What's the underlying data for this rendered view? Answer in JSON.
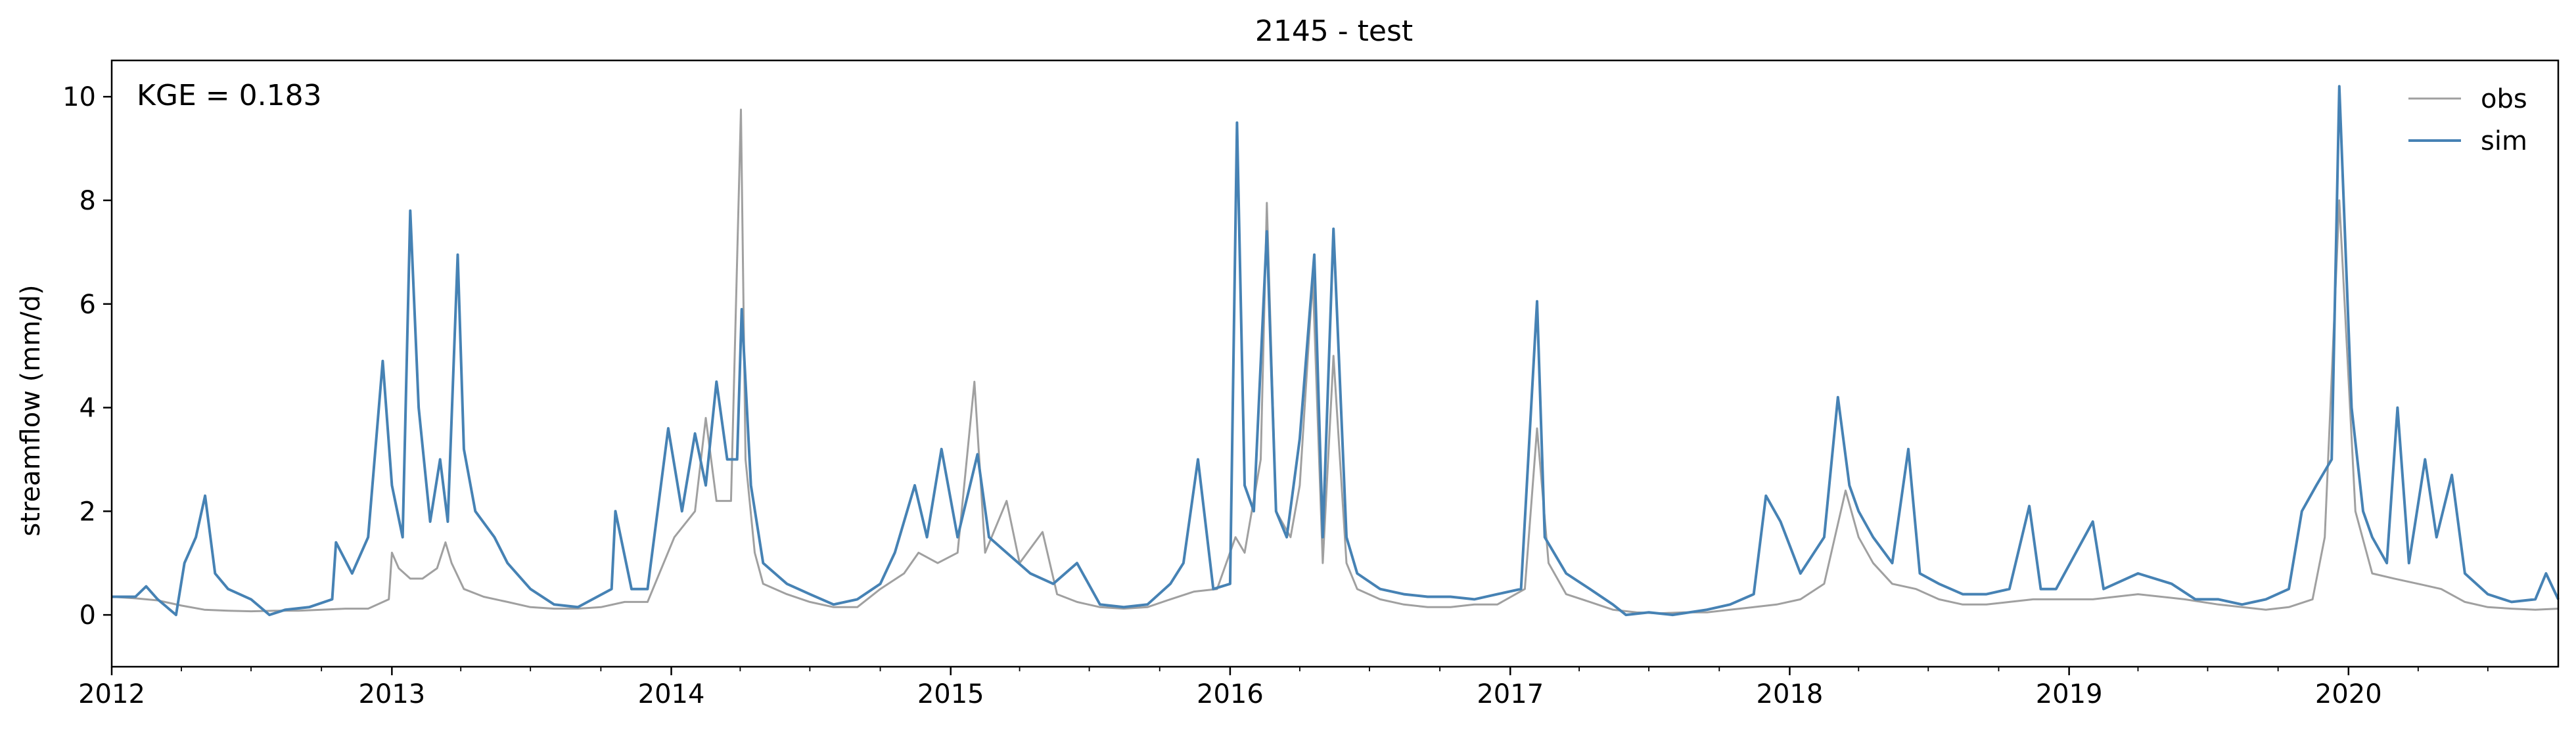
{
  "chart_data": {
    "type": "line",
    "title": "2145 - test",
    "xlabel": "",
    "ylabel": "streamflow (mm/d)",
    "x_range": [
      "2012-01-01",
      "2020-10-01"
    ],
    "ylim": [
      -1,
      10.7
    ],
    "grid": false,
    "legend_position": "top-right",
    "x_ticks": [
      "2012",
      "2013",
      "2014",
      "2015",
      "2016",
      "2017",
      "2018",
      "2019",
      "2020"
    ],
    "x_tick_dates": [
      "2012-01-01",
      "2013-01-01",
      "2014-01-01",
      "2015-01-01",
      "2016-01-01",
      "2017-01-01",
      "2018-01-01",
      "2019-01-01",
      "2020-01-01"
    ],
    "y_ticks": [
      "0",
      "2",
      "4",
      "6",
      "8",
      "10"
    ],
    "y_tick_values": [
      0,
      2,
      4,
      6,
      8,
      10
    ],
    "annotation": "KGE = 0.183",
    "series": [
      {
        "name": "obs",
        "color": "#a0a0a0",
        "points": [
          [
            "2012-01-01",
            0.35
          ],
          [
            "2012-02-01",
            0.32
          ],
          [
            "2012-03-01",
            0.28
          ],
          [
            "2012-04-01",
            0.18
          ],
          [
            "2012-05-01",
            0.1
          ],
          [
            "2012-06-01",
            0.08
          ],
          [
            "2012-07-01",
            0.07
          ],
          [
            "2012-08-01",
            0.08
          ],
          [
            "2012-09-01",
            0.08
          ],
          [
            "2012-10-01",
            0.1
          ],
          [
            "2012-11-01",
            0.12
          ],
          [
            "2012-12-01",
            0.12
          ],
          [
            "2012-12-28",
            0.3
          ],
          [
            "2013-01-01",
            1.2
          ],
          [
            "2013-01-10",
            0.9
          ],
          [
            "2013-01-25",
            0.7
          ],
          [
            "2013-02-10",
            0.7
          ],
          [
            "2013-03-01",
            0.9
          ],
          [
            "2013-03-12",
            1.4
          ],
          [
            "2013-03-20",
            1.0
          ],
          [
            "2013-04-05",
            0.5
          ],
          [
            "2013-05-01",
            0.35
          ],
          [
            "2013-06-01",
            0.25
          ],
          [
            "2013-07-01",
            0.15
          ],
          [
            "2013-08-01",
            0.12
          ],
          [
            "2013-09-01",
            0.12
          ],
          [
            "2013-10-01",
            0.15
          ],
          [
            "2013-11-01",
            0.25
          ],
          [
            "2013-12-01",
            0.25
          ],
          [
            "2014-01-05",
            1.5
          ],
          [
            "2014-02-01",
            2.0
          ],
          [
            "2014-02-15",
            3.8
          ],
          [
            "2014-03-01",
            2.2
          ],
          [
            "2014-03-20",
            2.2
          ],
          [
            "2014-04-02",
            9.75
          ],
          [
            "2014-04-08",
            3.0
          ],
          [
            "2014-04-20",
            1.2
          ],
          [
            "2014-05-01",
            0.6
          ],
          [
            "2014-06-01",
            0.4
          ],
          [
            "2014-07-01",
            0.25
          ],
          [
            "2014-08-01",
            0.15
          ],
          [
            "2014-09-01",
            0.15
          ],
          [
            "2014-10-01",
            0.5
          ],
          [
            "2014-11-01",
            0.8
          ],
          [
            "2014-11-20",
            1.2
          ],
          [
            "2014-12-15",
            1.0
          ],
          [
            "2015-01-10",
            1.2
          ],
          [
            "2015-02-01",
            4.5
          ],
          [
            "2015-02-15",
            1.2
          ],
          [
            "2015-03-15",
            2.2
          ],
          [
            "2015-04-01",
            1.0
          ],
          [
            "2015-05-01",
            1.6
          ],
          [
            "2015-05-20",
            0.4
          ],
          [
            "2015-06-15",
            0.25
          ],
          [
            "2015-07-15",
            0.15
          ],
          [
            "2015-08-15",
            0.12
          ],
          [
            "2015-09-15",
            0.15
          ],
          [
            "2015-10-15",
            0.3
          ],
          [
            "2015-11-15",
            0.45
          ],
          [
            "2015-12-15",
            0.5
          ],
          [
            "2016-01-08",
            1.5
          ],
          [
            "2016-01-20",
            1.2
          ],
          [
            "2016-02-10",
            3.0
          ],
          [
            "2016-02-18",
            7.95
          ],
          [
            "2016-03-01",
            2.0
          ],
          [
            "2016-03-20",
            1.5
          ],
          [
            "2016-04-01",
            2.5
          ],
          [
            "2016-04-18",
            6.5
          ],
          [
            "2016-05-01",
            1.0
          ],
          [
            "2016-05-15",
            5.0
          ],
          [
            "2016-06-01",
            1.0
          ],
          [
            "2016-06-15",
            0.5
          ],
          [
            "2016-07-15",
            0.3
          ],
          [
            "2016-08-15",
            0.2
          ],
          [
            "2016-09-15",
            0.15
          ],
          [
            "2016-10-15",
            0.15
          ],
          [
            "2016-11-15",
            0.2
          ],
          [
            "2016-12-15",
            0.2
          ],
          [
            "2017-01-20",
            0.5
          ],
          [
            "2017-02-05",
            3.6
          ],
          [
            "2017-02-20",
            1.0
          ],
          [
            "2017-03-15",
            0.4
          ],
          [
            "2017-04-15",
            0.25
          ],
          [
            "2017-05-15",
            0.1
          ],
          [
            "2017-06-15",
            0.05
          ],
          [
            "2017-07-15",
            0.03
          ],
          [
            "2017-08-15",
            0.05
          ],
          [
            "2017-09-15",
            0.05
          ],
          [
            "2017-10-15",
            0.1
          ],
          [
            "2017-11-15",
            0.15
          ],
          [
            "2017-12-15",
            0.2
          ],
          [
            "2018-01-15",
            0.3
          ],
          [
            "2018-02-15",
            0.6
          ],
          [
            "2018-03-15",
            2.4
          ],
          [
            "2018-04-01",
            1.5
          ],
          [
            "2018-04-20",
            1.0
          ],
          [
            "2018-05-15",
            0.6
          ],
          [
            "2018-06-15",
            0.5
          ],
          [
            "2018-07-15",
            0.3
          ],
          [
            "2018-08-15",
            0.2
          ],
          [
            "2018-09-15",
            0.2
          ],
          [
            "2018-10-15",
            0.25
          ],
          [
            "2018-11-15",
            0.3
          ],
          [
            "2018-12-15",
            0.3
          ],
          [
            "2019-02-01",
            0.3
          ],
          [
            "2019-04-01",
            0.4
          ],
          [
            "2019-06-01",
            0.3
          ],
          [
            "2019-07-15",
            0.2
          ],
          [
            "2019-09-15",
            0.1
          ],
          [
            "2019-10-15",
            0.15
          ],
          [
            "2019-11-15",
            0.3
          ],
          [
            "2019-12-01",
            1.5
          ],
          [
            "2019-12-20",
            8.0
          ],
          [
            "2020-01-10",
            2.0
          ],
          [
            "2020-02-01",
            0.8
          ],
          [
            "2020-03-01",
            0.7
          ],
          [
            "2020-04-01",
            0.6
          ],
          [
            "2020-05-01",
            0.5
          ],
          [
            "2020-06-01",
            0.25
          ],
          [
            "2020-07-01",
            0.15
          ],
          [
            "2020-08-01",
            0.12
          ],
          [
            "2020-09-01",
            0.1
          ],
          [
            "2020-10-01",
            0.12
          ]
        ]
      },
      {
        "name": "sim",
        "color": "#4682b4",
        "points": [
          [
            "2012-01-01",
            0.35
          ],
          [
            "2012-02-01",
            0.35
          ],
          [
            "2012-02-15",
            0.55
          ],
          [
            "2012-03-01",
            0.3
          ],
          [
            "2012-03-25",
            0.0
          ],
          [
            "2012-04-05",
            1.0
          ],
          [
            "2012-04-20",
            1.5
          ],
          [
            "2012-05-02",
            2.3
          ],
          [
            "2012-05-15",
            0.8
          ],
          [
            "2012-06-01",
            0.5
          ],
          [
            "2012-07-01",
            0.3
          ],
          [
            "2012-07-25",
            0.0
          ],
          [
            "2012-08-15",
            0.1
          ],
          [
            "2012-09-15",
            0.15
          ],
          [
            "2012-10-15",
            0.3
          ],
          [
            "2012-10-20",
            1.4
          ],
          [
            "2012-11-10",
            0.8
          ],
          [
            "2012-12-01",
            1.5
          ],
          [
            "2012-12-20",
            4.9
          ],
          [
            "2013-01-01",
            2.5
          ],
          [
            "2013-01-15",
            1.5
          ],
          [
            "2013-01-25",
            7.8
          ],
          [
            "2013-02-05",
            4.0
          ],
          [
            "2013-02-20",
            1.8
          ],
          [
            "2013-03-05",
            3.0
          ],
          [
            "2013-03-15",
            1.8
          ],
          [
            "2013-03-28",
            6.95
          ],
          [
            "2013-04-05",
            3.2
          ],
          [
            "2013-04-20",
            2.0
          ],
          [
            "2013-05-15",
            1.5
          ],
          [
            "2013-06-01",
            1.0
          ],
          [
            "2013-07-01",
            0.5
          ],
          [
            "2013-08-01",
            0.2
          ],
          [
            "2013-09-01",
            0.15
          ],
          [
            "2013-10-15",
            0.5
          ],
          [
            "2013-10-20",
            2.0
          ],
          [
            "2013-11-10",
            0.5
          ],
          [
            "2013-12-01",
            0.5
          ],
          [
            "2013-12-28",
            3.6
          ],
          [
            "2014-01-15",
            2.0
          ],
          [
            "2014-02-01",
            3.5
          ],
          [
            "2014-02-15",
            2.5
          ],
          [
            "2014-03-01",
            4.5
          ],
          [
            "2014-03-15",
            3.0
          ],
          [
            "2014-03-28",
            3.0
          ],
          [
            "2014-04-03",
            5.9
          ],
          [
            "2014-04-15",
            2.5
          ],
          [
            "2014-05-01",
            1.0
          ],
          [
            "2014-06-01",
            0.6
          ],
          [
            "2014-07-01",
            0.4
          ],
          [
            "2014-08-01",
            0.2
          ],
          [
            "2014-09-01",
            0.3
          ],
          [
            "2014-10-01",
            0.6
          ],
          [
            "2014-10-20",
            1.2
          ],
          [
            "2014-11-15",
            2.5
          ],
          [
            "2014-12-01",
            1.5
          ],
          [
            "2014-12-20",
            3.2
          ],
          [
            "2015-01-10",
            1.5
          ],
          [
            "2015-02-05",
            3.1
          ],
          [
            "2015-02-20",
            1.5
          ],
          [
            "2015-03-15",
            1.2
          ],
          [
            "2015-04-15",
            0.8
          ],
          [
            "2015-05-15",
            0.6
          ],
          [
            "2015-06-15",
            1.0
          ],
          [
            "2015-07-15",
            0.2
          ],
          [
            "2015-08-15",
            0.15
          ],
          [
            "2015-09-15",
            0.2
          ],
          [
            "2015-10-15",
            0.6
          ],
          [
            "2015-11-01",
            1.0
          ],
          [
            "2015-11-20",
            3.0
          ],
          [
            "2015-12-10",
            0.5
          ],
          [
            "2016-01-01",
            0.6
          ],
          [
            "2016-01-10",
            9.5
          ],
          [
            "2016-01-20",
            2.5
          ],
          [
            "2016-02-01",
            2.0
          ],
          [
            "2016-02-18",
            7.4
          ],
          [
            "2016-03-01",
            2.0
          ],
          [
            "2016-03-15",
            1.5
          ],
          [
            "2016-04-01",
            3.4
          ],
          [
            "2016-04-20",
            6.95
          ],
          [
            "2016-05-01",
            1.5
          ],
          [
            "2016-05-15",
            7.45
          ],
          [
            "2016-06-01",
            1.5
          ],
          [
            "2016-06-15",
            0.8
          ],
          [
            "2016-07-15",
            0.5
          ],
          [
            "2016-08-15",
            0.4
          ],
          [
            "2016-09-15",
            0.35
          ],
          [
            "2016-10-15",
            0.35
          ],
          [
            "2016-11-15",
            0.3
          ],
          [
            "2016-12-15",
            0.4
          ],
          [
            "2017-01-15",
            0.5
          ],
          [
            "2017-02-05",
            6.05
          ],
          [
            "2017-02-15",
            1.5
          ],
          [
            "2017-03-15",
            0.8
          ],
          [
            "2017-04-15",
            0.5
          ],
          [
            "2017-05-15",
            0.2
          ],
          [
            "2017-06-01",
            0.0
          ],
          [
            "2017-07-01",
            0.05
          ],
          [
            "2017-08-01",
            0.0
          ],
          [
            "2017-09-15",
            0.1
          ],
          [
            "2017-10-15",
            0.2
          ],
          [
            "2017-11-15",
            0.4
          ],
          [
            "2017-12-01",
            2.3
          ],
          [
            "2017-12-20",
            1.8
          ],
          [
            "2018-01-15",
            0.8
          ],
          [
            "2018-02-15",
            1.5
          ],
          [
            "2018-03-05",
            4.2
          ],
          [
            "2018-03-20",
            2.5
          ],
          [
            "2018-04-01",
            2.0
          ],
          [
            "2018-04-20",
            1.5
          ],
          [
            "2018-05-15",
            1.0
          ],
          [
            "2018-06-05",
            3.2
          ],
          [
            "2018-06-20",
            0.8
          ],
          [
            "2018-07-15",
            0.6
          ],
          [
            "2018-08-15",
            0.4
          ],
          [
            "2018-09-15",
            0.4
          ],
          [
            "2018-10-15",
            0.5
          ],
          [
            "2018-11-10",
            2.1
          ],
          [
            "2018-11-25",
            0.5
          ],
          [
            "2018-12-15",
            0.5
          ],
          [
            "2019-02-01",
            1.8
          ],
          [
            "2019-02-15",
            0.5
          ],
          [
            "2019-04-01",
            0.8
          ],
          [
            "2019-05-15",
            0.6
          ],
          [
            "2019-06-15",
            0.3
          ],
          [
            "2019-07-15",
            0.3
          ],
          [
            "2019-08-15",
            0.2
          ],
          [
            "2019-09-15",
            0.3
          ],
          [
            "2019-10-15",
            0.5
          ],
          [
            "2019-11-01",
            2.0
          ],
          [
            "2019-11-20",
            2.5
          ],
          [
            "2019-12-10",
            3.0
          ],
          [
            "2019-12-20",
            10.2
          ],
          [
            "2020-01-05",
            4.0
          ],
          [
            "2020-01-20",
            2.0
          ],
          [
            "2020-02-01",
            1.5
          ],
          [
            "2020-02-20",
            1.0
          ],
          [
            "2020-03-05",
            4.0
          ],
          [
            "2020-03-20",
            1.0
          ],
          [
            "2020-04-10",
            3.0
          ],
          [
            "2020-04-25",
            1.5
          ],
          [
            "2020-05-15",
            2.7
          ],
          [
            "2020-06-01",
            0.8
          ],
          [
            "2020-07-01",
            0.4
          ],
          [
            "2020-08-01",
            0.25
          ],
          [
            "2020-09-01",
            0.3
          ],
          [
            "2020-09-15",
            0.8
          ],
          [
            "2020-10-01",
            0.3
          ]
        ]
      }
    ]
  }
}
